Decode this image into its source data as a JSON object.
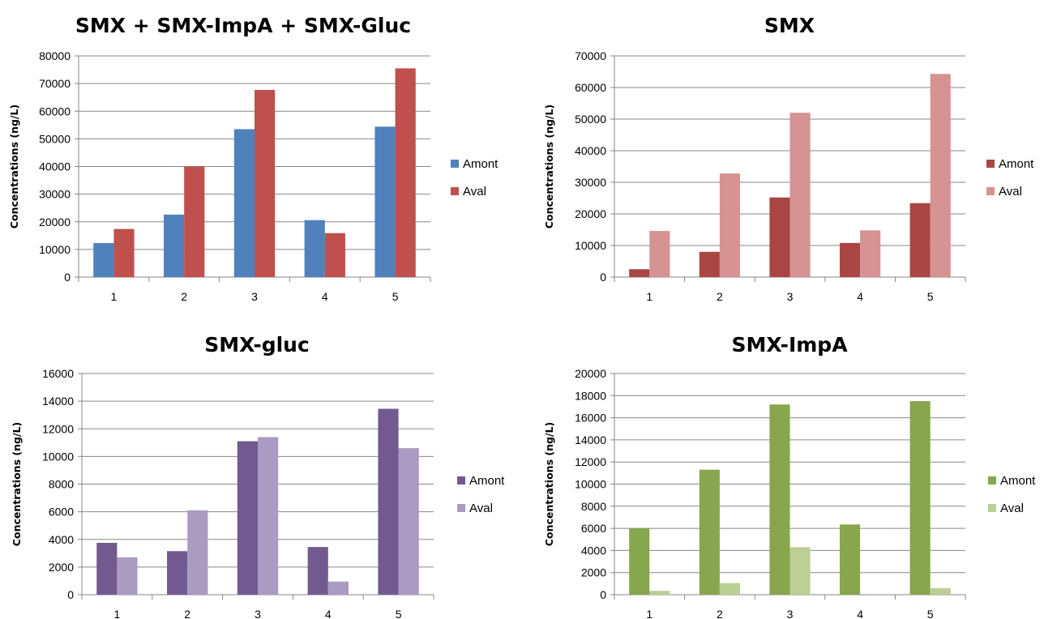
{
  "chart_data": [
    {
      "type": "bar",
      "title": "SMX + SMX-ImpA + SMX-Gluc",
      "ylabel": "Concentrations (ng/L)",
      "xlabel": "",
      "categories": [
        "1",
        "2",
        "3",
        "4",
        "5"
      ],
      "ylim": [
        0,
        80000
      ],
      "yticks": [
        0,
        10000,
        20000,
        30000,
        40000,
        50000,
        60000,
        70000,
        80000
      ],
      "grid": true,
      "legend": "right",
      "series": [
        {
          "name": "Amont",
          "color": "#4f81bd",
          "values": [
            12300,
            22600,
            53500,
            20600,
            54400
          ]
        },
        {
          "name": "Aval",
          "color": "#c0504d",
          "values": [
            17400,
            40000,
            67700,
            15900,
            75500
          ]
        }
      ]
    },
    {
      "type": "bar",
      "title": "SMX",
      "ylabel": "Concentrations (ng/L)",
      "xlabel": "",
      "categories": [
        "1",
        "2",
        "3",
        "4",
        "5"
      ],
      "ylim": [
        0,
        70000
      ],
      "yticks": [
        0,
        10000,
        20000,
        30000,
        40000,
        50000,
        60000,
        70000
      ],
      "grid": true,
      "legend": "right",
      "series": [
        {
          "name": "Amont",
          "color": "#a94644",
          "values": [
            2500,
            8000,
            25200,
            10800,
            23400
          ]
        },
        {
          "name": "Aval",
          "color": "#d69394",
          "values": [
            14600,
            32800,
            52000,
            14800,
            64300
          ]
        }
      ]
    },
    {
      "type": "bar",
      "title": "SMX-gluc",
      "ylabel": "Concentrations (ng/L)",
      "xlabel": "",
      "categories": [
        "1",
        "2",
        "3",
        "4",
        "5"
      ],
      "ylim": [
        0,
        16000
      ],
      "yticks": [
        0,
        2000,
        4000,
        6000,
        8000,
        10000,
        12000,
        14000,
        16000
      ],
      "grid": true,
      "legend": "right",
      "series": [
        {
          "name": "Amont",
          "color": "#725a90",
          "values": [
            3750,
            3150,
            11100,
            3450,
            13450
          ]
        },
        {
          "name": "Aval",
          "color": "#a99bc2",
          "values": [
            2700,
            6100,
            11400,
            950,
            10600
          ]
        }
      ]
    },
    {
      "type": "bar",
      "title": "SMX-ImpA",
      "ylabel": "Concentrations (ng/L)",
      "xlabel": "",
      "categories": [
        "1",
        "2",
        "3",
        "4",
        "5"
      ],
      "ylim": [
        0,
        20000
      ],
      "yticks": [
        0,
        2000,
        4000,
        6000,
        8000,
        10000,
        12000,
        14000,
        16000,
        18000,
        20000
      ],
      "grid": true,
      "legend": "right",
      "series": [
        {
          "name": "Amont",
          "color": "#87a64d",
          "values": [
            6000,
            11300,
            17200,
            6350,
            17500
          ]
        },
        {
          "name": "Aval",
          "color": "#bccf95",
          "values": [
            350,
            1050,
            4300,
            0,
            600
          ]
        }
      ]
    }
  ]
}
